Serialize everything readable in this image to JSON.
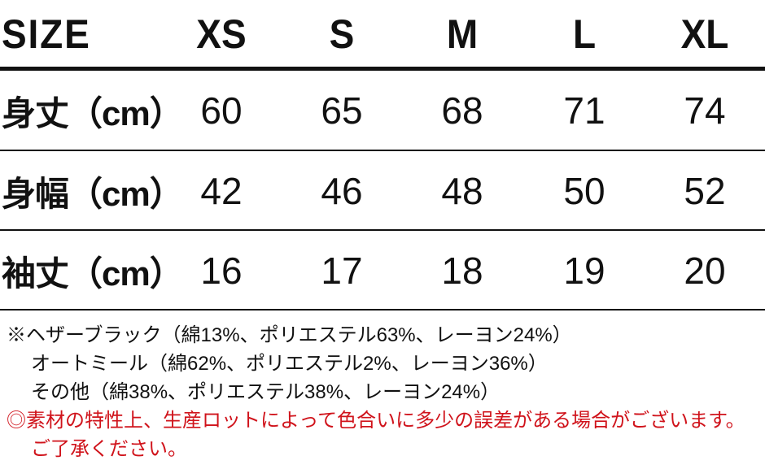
{
  "table": {
    "header": [
      "SIZE",
      "XS",
      "S",
      "M",
      "L",
      "XL"
    ],
    "rows": [
      {
        "label": "身丈（cm）",
        "values": [
          "60",
          "65",
          "68",
          "71",
          "74"
        ]
      },
      {
        "label": "身幅（cm）",
        "values": [
          "42",
          "46",
          "48",
          "50",
          "52"
        ]
      },
      {
        "label": "袖丈（cm）",
        "values": [
          "16",
          "17",
          "18",
          "19",
          "20"
        ]
      }
    ]
  },
  "notes": {
    "lines": [
      "※ヘザーブラック（綿13%、ポリエステル63%、レーヨン24%）",
      "オートミール（綿62%、ポリエステル2%、レーヨン36%）",
      "その他（綿38%、ポリエステル38%、レーヨン24%）"
    ],
    "warning": [
      "◎素材の特性上、生産ロットによって色合いに多少の誤差がある場合がございます。",
      "ご了承ください。"
    ],
    "warning_color": "#d0131b"
  }
}
